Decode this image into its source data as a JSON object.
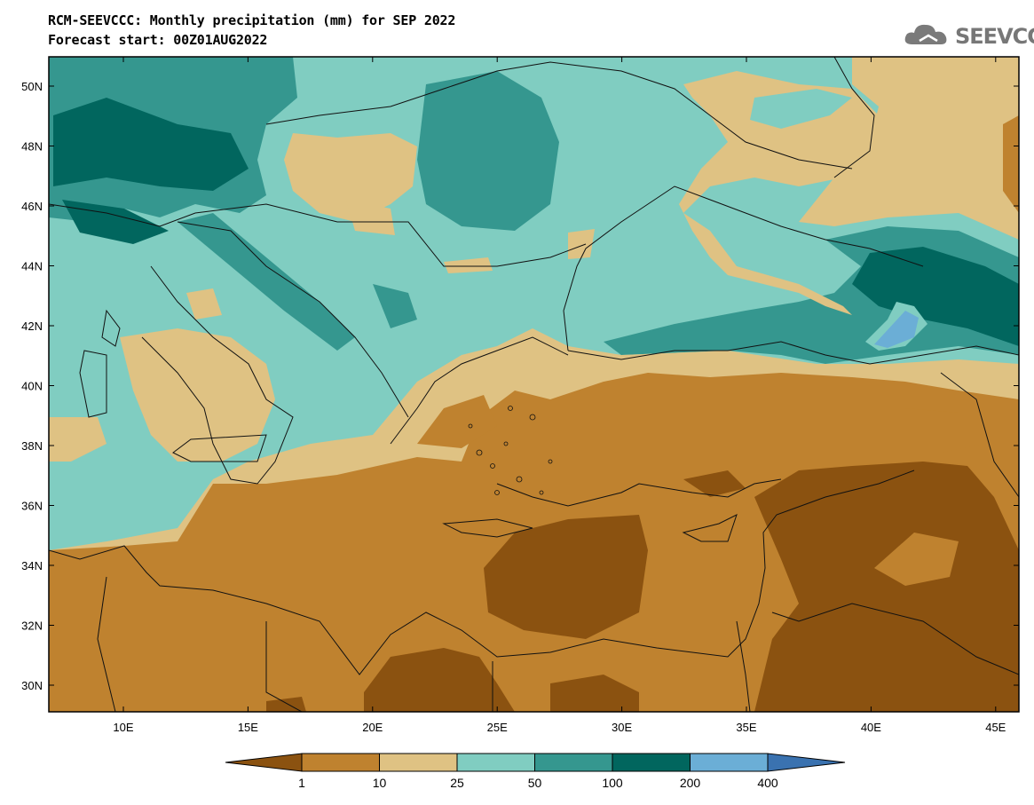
{
  "title": "RCM-SEEVCCC: Monthly precipitation (mm) for SEP 2022",
  "subtitle": "Forecast start: 00Z01AUG2022",
  "logo_text": "SEEVCCC",
  "logo_icon": "cloud-icon",
  "map": {
    "lon_ticks": [
      "10E",
      "15E",
      "20E",
      "25E",
      "30E",
      "35E",
      "40E",
      "45E"
    ],
    "lat_ticks": [
      "50N",
      "48N",
      "46N",
      "44N",
      "42N",
      "40N",
      "38N",
      "36N",
      "34N",
      "32N",
      "30N"
    ]
  },
  "legend": {
    "labels": [
      "1",
      "10",
      "25",
      "50",
      "100",
      "200",
      "400"
    ],
    "colors": [
      "#8b5210",
      "#bf822f",
      "#dfc283",
      "#80cdc1",
      "#35978f",
      "#01665e",
      "#6baed6",
      "#3a72b0"
    ]
  }
}
